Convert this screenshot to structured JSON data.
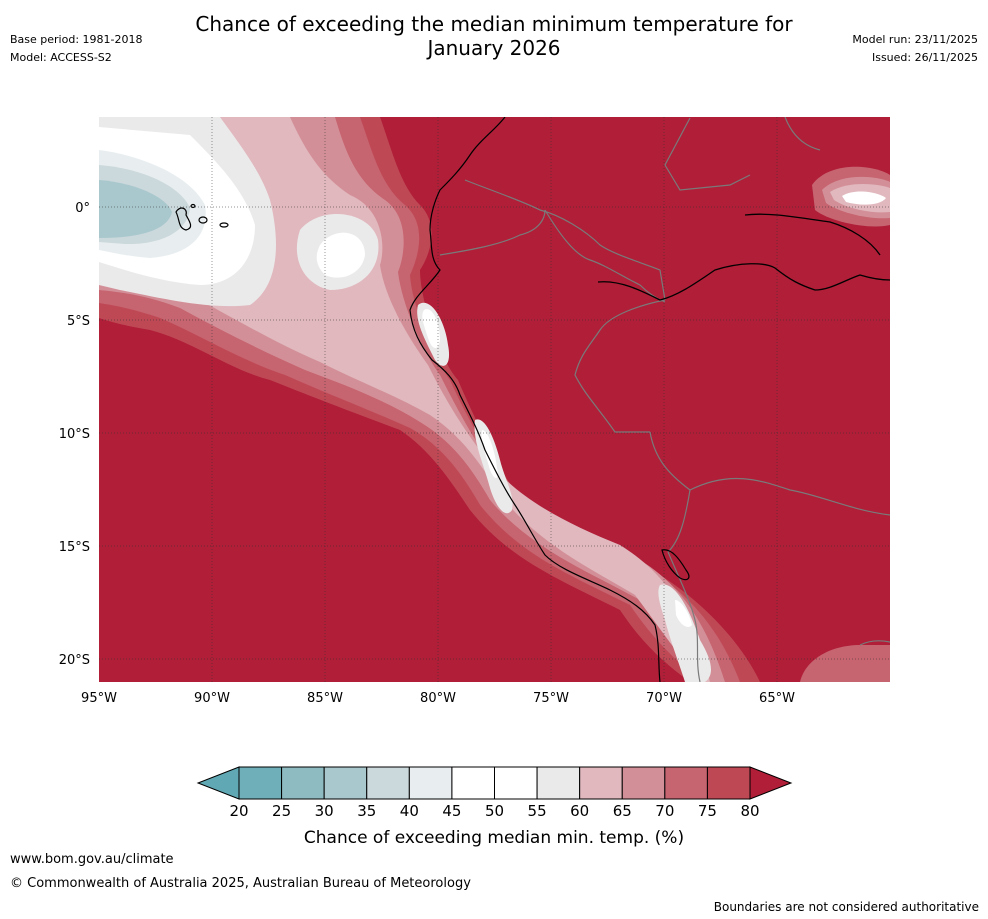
{
  "title_line1": "Chance of exceeding the median minimum temperature for",
  "title_line2": "January 2026",
  "base_period": "Base period: 1981-2018",
  "model": "Model: ACCESS-S2",
  "model_run": "Model run: 23/11/2025",
  "issued": "Issued: 26/11/2025",
  "lat_labels": [
    "0°",
    "5°S",
    "10°S",
    "15°S",
    "20°S"
  ],
  "lon_labels": [
    "95°W",
    "90°W",
    "85°W",
    "80°W",
    "75°W",
    "70°W",
    "65°W"
  ],
  "colorbar": {
    "ticks": [
      "20",
      "25",
      "30",
      "35",
      "40",
      "45",
      "50",
      "55",
      "60",
      "65",
      "70",
      "75",
      "80"
    ],
    "colors": [
      "#5fa8b4",
      "#6eafb9",
      "#8ebac1",
      "#a9c8cd",
      "#cbd8dc",
      "#e8eef0",
      "#ffffff",
      "#ffffff",
      "#ebeaea",
      "#e0b8be",
      "#d38f98",
      "#c6646f",
      "#bf4855",
      "#b01e38"
    ],
    "label": "Chance of exceeding median min. temp. (%)"
  },
  "footer": {
    "url": "www.bom.gov.au/climate",
    "copyright": "© Commonwealth of Australia 2025, Australian Bureau of Meteorology",
    "note": "Boundaries are not considered authoritative"
  }
}
